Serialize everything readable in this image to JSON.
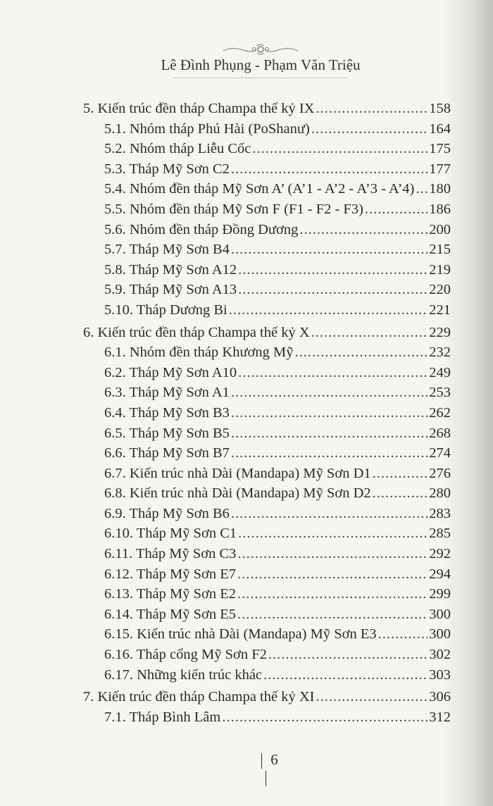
{
  "header": {
    "authors": "Lê Đình Phụng - Phạm Văn Triệu"
  },
  "toc": [
    {
      "level": 1,
      "title": "5. Kiến trúc đền tháp Champa thế kỷ IX",
      "page": "158"
    },
    {
      "level": 2,
      "title": "5.1. Nhóm tháp Phú Hài (PoShanư)",
      "page": "164"
    },
    {
      "level": 2,
      "title": "5.2. Nhóm tháp Liễu Cốc",
      "page": "175"
    },
    {
      "level": 2,
      "title": "5.3. Tháp Mỹ Sơn C2",
      "page": "177"
    },
    {
      "level": 2,
      "title": "5.4. Nhóm đền tháp Mỹ Sơn A’ (A’1 - A’2 - A’3 - A’4)",
      "page": "180"
    },
    {
      "level": 2,
      "title": "5.5. Nhóm đền tháp Mỹ Sơn F (F1 - F2 - F3)",
      "page": "186"
    },
    {
      "level": 2,
      "title": "5.6. Nhóm đền tháp Đồng Dương",
      "page": "200"
    },
    {
      "level": 2,
      "title": "5.7. Tháp Mỹ Sơn B4",
      "page": "215"
    },
    {
      "level": 2,
      "title": "5.8. Tháp Mỹ Sơn A12",
      "page": "219"
    },
    {
      "level": 2,
      "title": "5.9. Tháp Mỹ Sơn A13",
      "page": "220"
    },
    {
      "level": 2,
      "title": "5.10. Tháp Dương Bi",
      "page": "221"
    },
    {
      "level": 1,
      "title": "6. Kiến trúc đền tháp Champa thế kỷ X",
      "page": "229"
    },
    {
      "level": 2,
      "title": "6.1. Nhóm đền tháp Khương Mỹ",
      "page": "232"
    },
    {
      "level": 2,
      "title": "6.2. Tháp Mỹ Sơn A10",
      "page": "249"
    },
    {
      "level": 2,
      "title": "6.3. Tháp Mỹ Sơn A1",
      "page": "253"
    },
    {
      "level": 2,
      "title": "6.4. Tháp Mỹ Sơn B3",
      "page": "262"
    },
    {
      "level": 2,
      "title": "6.5. Tháp Mỹ Sơn B5",
      "page": "268"
    },
    {
      "level": 2,
      "title": "6.6. Tháp Mỹ Sơn B7",
      "page": "274"
    },
    {
      "level": 2,
      "title": "6.7. Kiến trúc nhà Dài (Mandapa) Mỹ Sơn D1",
      "page": "276"
    },
    {
      "level": 2,
      "title": "6.8. Kiến trúc nhà Dài (Mandapa) Mỹ Sơn D2",
      "page": "280"
    },
    {
      "level": 2,
      "title": "6.9. Tháp Mỹ Sơn B6",
      "page": "283"
    },
    {
      "level": 2,
      "title": "6.10. Tháp Mỹ Sơn C1",
      "page": "285"
    },
    {
      "level": 2,
      "title": "6.11. Tháp Mỹ Sơn C3",
      "page": "292"
    },
    {
      "level": 2,
      "title": "6.12. Tháp Mỹ Sơn E7",
      "page": "294"
    },
    {
      "level": 2,
      "title": "6.13. Tháp Mỹ Sơn E2",
      "page": "299"
    },
    {
      "level": 2,
      "title": "6.14. Tháp Mỹ Sơn E5",
      "page": "300"
    },
    {
      "level": 2,
      "title": "6.15. Kiến trúc nhà Dài (Mandapa) Mỹ Sơn E3",
      "page": "300"
    },
    {
      "level": 2,
      "title": "6.16. Tháp cổng Mỹ Sơn F2",
      "page": "302"
    },
    {
      "level": 2,
      "title": "6.17. Những kiến trúc khác",
      "page": "303"
    },
    {
      "level": 1,
      "title": "7. Kiến trúc đền tháp Champa thế kỷ XI",
      "page": "306"
    },
    {
      "level": 2,
      "title": "7.1. Tháp Bình Lâm",
      "page": "312"
    }
  ],
  "footer": {
    "page_number": "6"
  }
}
